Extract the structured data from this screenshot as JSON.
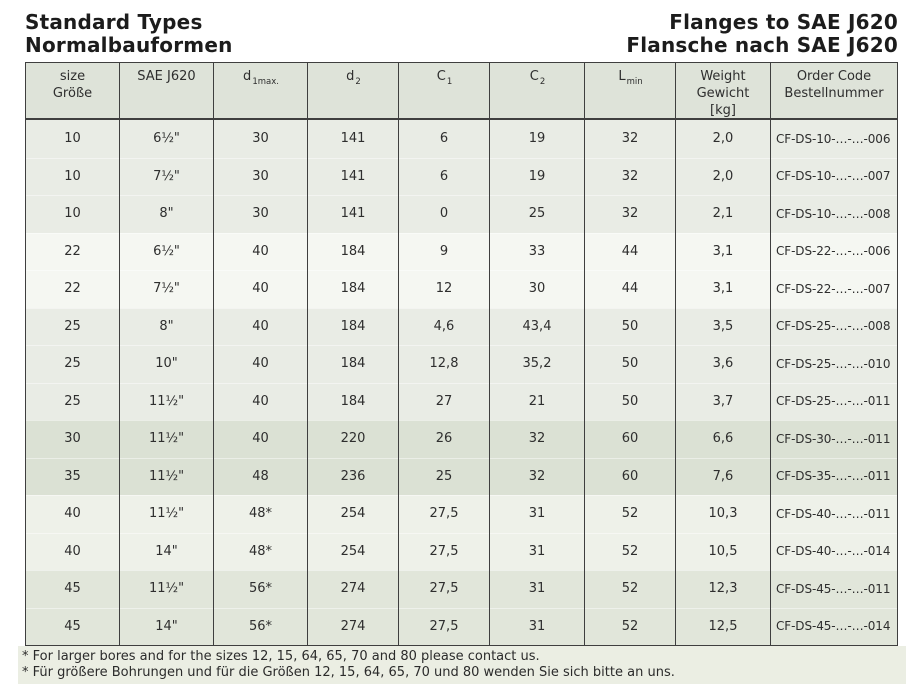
{
  "page": {
    "title_left_line1": "Standard Types",
    "title_left_line2": "Normalbauformen",
    "title_right_line1": "Flanges to SAE J620",
    "title_right_line2": "Flansche nach SAE J620"
  },
  "table": {
    "columns": [
      {
        "id": "size",
        "lines": [
          "size",
          "Größe"
        ]
      },
      {
        "id": "sae-j620",
        "lines": [
          "SAE J620"
        ]
      },
      {
        "id": "d1max",
        "symbol": "d",
        "sub": "1max."
      },
      {
        "id": "d2",
        "symbol": "d",
        "sub": "2"
      },
      {
        "id": "c1",
        "symbol": "C",
        "sub": "1"
      },
      {
        "id": "c2",
        "symbol": "C",
        "sub": "2"
      },
      {
        "id": "lmin",
        "symbol": "L",
        "sub": "min"
      },
      {
        "id": "weight",
        "lines": [
          "Weight",
          "Gewicht",
          "[kg]"
        ]
      },
      {
        "id": "order-code",
        "lines": [
          "Order Code",
          "Bestellnummer"
        ]
      }
    ],
    "rows": [
      {
        "shade": "a",
        "values": [
          "10",
          "6½\"",
          "30",
          "141",
          "6",
          "19",
          "32",
          "2,0",
          "CF-DS-10-…-…-006"
        ]
      },
      {
        "shade": "a",
        "values": [
          "10",
          "7½\"",
          "30",
          "141",
          "6",
          "19",
          "32",
          "2,0",
          "CF-DS-10-…-…-007"
        ]
      },
      {
        "shade": "a",
        "values": [
          "10",
          "8\"",
          "30",
          "141",
          "0",
          "25",
          "32",
          "2,1",
          "CF-DS-10-…-…-008"
        ]
      },
      {
        "shade": "b",
        "values": [
          "22",
          "6½\"",
          "40",
          "184",
          "9",
          "33",
          "44",
          "3,1",
          "CF-DS-22-…-…-006"
        ]
      },
      {
        "shade": "b",
        "values": [
          "22",
          "7½\"",
          "40",
          "184",
          "12",
          "30",
          "44",
          "3,1",
          "CF-DS-22-…-…-007"
        ]
      },
      {
        "shade": "a",
        "values": [
          "25",
          "8\"",
          "40",
          "184",
          "4,6",
          "43,4",
          "50",
          "3,5",
          "CF-DS-25-…-…-008"
        ]
      },
      {
        "shade": "a",
        "values": [
          "25",
          "10\"",
          "40",
          "184",
          "12,8",
          "35,2",
          "50",
          "3,6",
          "CF-DS-25-…-…-010"
        ]
      },
      {
        "shade": "a",
        "values": [
          "25",
          "11½\"",
          "40",
          "184",
          "27",
          "21",
          "50",
          "3,7",
          "CF-DS-25-…-…-011"
        ]
      },
      {
        "shade": "c",
        "values": [
          "30",
          "11½\"",
          "40",
          "220",
          "26",
          "32",
          "60",
          "6,6",
          "CF-DS-30-…-…-011"
        ]
      },
      {
        "shade": "c",
        "values": [
          "35",
          "11½\"",
          "48",
          "236",
          "25",
          "32",
          "60",
          "7,6",
          "CF-DS-35-…-…-011"
        ]
      },
      {
        "shade": "b2",
        "values": [
          "40",
          "11½\"",
          "48*",
          "254",
          "27,5",
          "31",
          "52",
          "10,3",
          "CF-DS-40-…-…-011"
        ]
      },
      {
        "shade": "b2",
        "values": [
          "40",
          "14\"",
          "48*",
          "254",
          "27,5",
          "31",
          "52",
          "10,5",
          "CF-DS-40-…-…-014"
        ]
      },
      {
        "shade": "d",
        "values": [
          "45",
          "11½\"",
          "56*",
          "274",
          "27,5",
          "31",
          "52",
          "12,3",
          "CF-DS-45-…-…-011"
        ]
      },
      {
        "shade": "d",
        "values": [
          "45",
          "14\"",
          "56*",
          "274",
          "27,5",
          "31",
          "52",
          "12,5",
          "CF-DS-45-…-…-014"
        ]
      }
    ]
  },
  "footnotes": {
    "en": "* For larger bores and for the sizes 12, 15, 64, 65, 70 and 80 please contact us.",
    "de": "* Für größere Bohrungen und für die Größen 12, 15, 64, 65, 70 und 80 wenden Sie sich bitte an uns."
  },
  "colors": {
    "header_bg": "#dee3d9",
    "border": "#3f3f3f",
    "footnote_bg": "#ebeee3",
    "row_shades": {
      "a": "#e9ece5",
      "b": "#f5f7f2",
      "b2": "#eef1e9",
      "c": "#dbe1d4",
      "d": "#e1e6da"
    }
  }
}
